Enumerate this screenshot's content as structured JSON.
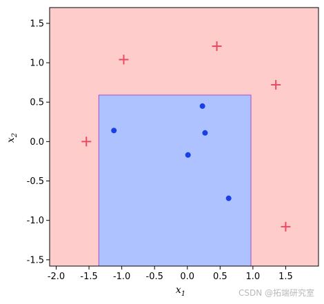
{
  "chart_data": {
    "type": "scatter",
    "xlabel": "x",
    "xlabel_sub": "1",
    "ylabel": "x",
    "ylabel_sub": "2",
    "xlim": [
      -2.1,
      2.0
    ],
    "ylim": [
      -1.58,
      1.7
    ],
    "xticks": [
      "-2.0",
      "-1.5",
      "-1.0",
      "-0.5",
      "0.0",
      "0.5",
      "1.0",
      "1.5"
    ],
    "xtick_values": [
      -2.0,
      -1.5,
      -1.0,
      -0.5,
      0.0,
      0.5,
      1.0,
      1.5
    ],
    "yticks": [
      "1.5",
      "1.0",
      "0.5",
      "0.0",
      "-0.5",
      "-1.0",
      "-1.5"
    ],
    "ytick_values": [
      1.5,
      1.0,
      0.5,
      0.0,
      -0.5,
      -1.0,
      -1.5
    ],
    "background_region": {
      "color": "#ffcccc"
    },
    "box_region": {
      "x_range": [
        -1.35,
        0.97
      ],
      "y_range": [
        -1.58,
        0.59
      ],
      "fill": "#adc2ff",
      "edge": "#a64dcc"
    },
    "series": [
      {
        "marker": "circle",
        "color": "#1a3fe6",
        "x": [
          -1.12,
          0.23,
          0.27,
          0.01,
          0.63
        ],
        "y": [
          0.14,
          0.45,
          0.11,
          -0.17,
          -0.72
        ]
      },
      {
        "marker": "plus",
        "color": "#e84a5f",
        "x": [
          -0.97,
          0.45,
          1.35,
          -1.54,
          1.5
        ],
        "y": [
          1.04,
          1.21,
          0.72,
          0.0,
          -1.08
        ]
      }
    ]
  },
  "watermark": "CSDN @拓端研究室"
}
